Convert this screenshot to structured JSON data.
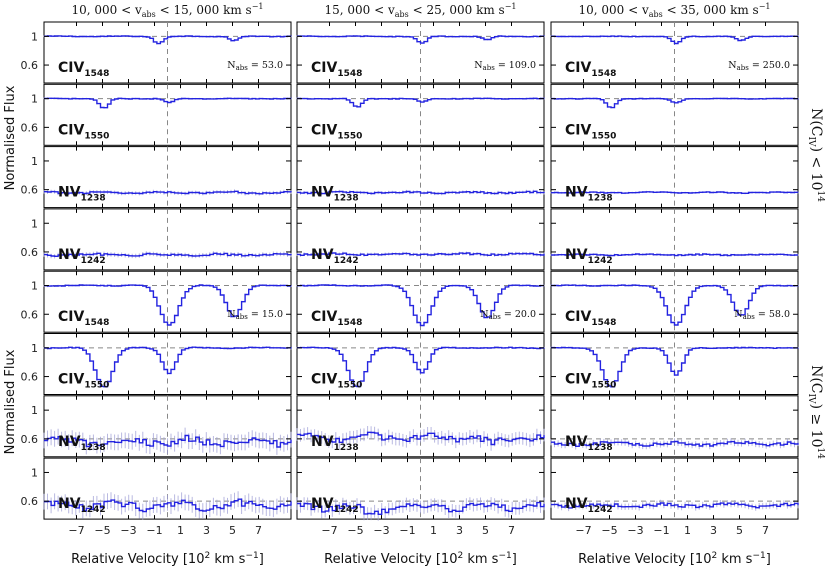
{
  "figure": {
    "column_titles": [
      {
        "lo": "10, 000",
        "hi": "15, 000",
        "mid": " < v",
        "sub": "abs",
        "tail": " < ",
        "unit": " km s",
        "exp": "−1"
      },
      {
        "lo": "15, 000",
        "hi": "25, 000",
        "mid": " < v",
        "sub": "abs",
        "tail": " < ",
        "unit": " km s",
        "exp": "−1"
      },
      {
        "lo": "10, 000",
        "hi": "35, 000",
        "mid": " < v",
        "sub": "abs",
        "tail": " < ",
        "unit": " km s",
        "exp": "−1"
      }
    ],
    "ylabel": "Normalised Flux",
    "xlabel": {
      "main": "Relative Velocity [10",
      "exp": "2",
      "rest": " km s",
      "exp2": "−1",
      "close": "]"
    },
    "row_group_labels": [
      {
        "pre": "N(C",
        "sub": "IV",
        "post": ") < 10",
        "exp": "14"
      },
      {
        "pre": "N(C",
        "sub": "IV",
        "post": ") ≥ 10",
        "exp": "14"
      }
    ],
    "x_ticks": [
      "−7",
      "−5",
      "−3",
      "−1",
      "1",
      "3",
      "5",
      "7"
    ]
  },
  "chart_data": {
    "type": "line",
    "title": "",
    "xlabel": "Relative Velocity [10^2 km s^-1]",
    "ylabel": "Normalised Flux",
    "x_range": [
      -9.5,
      9.5
    ],
    "y_ticks": [
      "1",
      "0.6"
    ],
    "reference_line_x": 0,
    "grid": false,
    "columns": [
      "10,000 < v_abs < 15,000 km s^-1",
      "15,000 < v_abs < 25,000 km s^-1",
      "10,000 < v_abs < 35,000 km s^-1"
    ],
    "groups": [
      {
        "label": "N(CIV) < 10^14",
        "n_abs": [
          "53.0",
          "109.0",
          "250.0"
        ],
        "panels": [
          {
            "ion": "CIV",
            "sub": "1548",
            "ylim": [
              0.35,
              1.2
            ],
            "baseline": 1.0,
            "columns": [
              {
                "continuum": 1.0,
                "noise": 0.004,
                "dips": [
                  [
                    0.1,
                    -0.8,
                    0.35
                  ],
                  [
                    0.06,
                    5.0,
                    0.35
                  ]
                ]
              },
              {
                "continuum": 1.0,
                "noise": 0.004,
                "dips": [
                  [
                    0.1,
                    0.0,
                    0.35
                  ],
                  [
                    0.05,
                    5.0,
                    0.35
                  ]
                ]
              },
              {
                "continuum": 1.0,
                "noise": 0.003,
                "dips": [
                  [
                    0.1,
                    0.0,
                    0.35
                  ],
                  [
                    0.06,
                    5.0,
                    0.35
                  ]
                ]
              }
            ]
          },
          {
            "ion": "CIV",
            "sub": "1550",
            "ylim": [
              0.35,
              1.2
            ],
            "baseline": 1.0,
            "columns": [
              {
                "continuum": 1.0,
                "noise": 0.004,
                "dips": [
                  [
                    0.14,
                    -5.0,
                    0.35
                  ],
                  [
                    0.06,
                    0.0,
                    0.35
                  ]
                ]
              },
              {
                "continuum": 1.0,
                "noise": 0.004,
                "dips": [
                  [
                    0.12,
                    -5.0,
                    0.35
                  ],
                  [
                    0.05,
                    0.0,
                    0.35
                  ]
                ]
              },
              {
                "continuum": 1.0,
                "noise": 0.003,
                "dips": [
                  [
                    0.13,
                    -5.0,
                    0.35
                  ],
                  [
                    0.06,
                    0.0,
                    0.35
                  ]
                ]
              }
            ]
          },
          {
            "ion": "NV",
            "sub": "1238",
            "ylim": [
              0.35,
              1.2
            ],
            "baseline": null,
            "columns": [
              {
                "continuum": 0.56,
                "noise": 0.012,
                "dips": []
              },
              {
                "continuum": 0.56,
                "noise": 0.01,
                "dips": []
              },
              {
                "continuum": 0.56,
                "noise": 0.006,
                "dips": []
              }
            ]
          },
          {
            "ion": "NV",
            "sub": "1242",
            "ylim": [
              0.35,
              1.2
            ],
            "baseline": null,
            "columns": [
              {
                "continuum": 0.56,
                "noise": 0.014,
                "dips": []
              },
              {
                "continuum": 0.57,
                "noise": 0.01,
                "dips": []
              },
              {
                "continuum": 0.56,
                "noise": 0.007,
                "dips": []
              }
            ]
          }
        ]
      },
      {
        "label": "N(CIV) ≥ 10^14",
        "n_abs": [
          "15.0",
          "20.0",
          "58.0"
        ],
        "panels": [
          {
            "ion": "CIV",
            "sub": "1548",
            "ylim": [
              0.35,
              1.2
            ],
            "baseline": 1.0,
            "columns": [
              {
                "continuum": 1.0,
                "noise": 0.006,
                "dips": [
                  [
                    0.55,
                    0.0,
                    0.7
                  ],
                  [
                    0.43,
                    5.0,
                    0.6
                  ]
                ]
              },
              {
                "continuum": 1.0,
                "noise": 0.005,
                "dips": [
                  [
                    0.55,
                    0.0,
                    0.7
                  ],
                  [
                    0.45,
                    5.0,
                    0.6
                  ]
                ]
              },
              {
                "continuum": 1.0,
                "noise": 0.004,
                "dips": [
                  [
                    0.55,
                    0.0,
                    0.7
                  ],
                  [
                    0.42,
                    5.0,
                    0.6
                  ]
                ]
              }
            ]
          },
          {
            "ion": "CIV",
            "sub": "1550",
            "ylim": [
              0.35,
              1.2
            ],
            "baseline": 1.0,
            "columns": [
              {
                "continuum": 1.0,
                "noise": 0.006,
                "dips": [
                  [
                    0.55,
                    -5.0,
                    0.65
                  ],
                  [
                    0.35,
                    0.0,
                    0.5
                  ]
                ]
              },
              {
                "continuum": 1.0,
                "noise": 0.005,
                "dips": [
                  [
                    0.55,
                    -5.0,
                    0.65
                  ],
                  [
                    0.35,
                    0.0,
                    0.5
                  ]
                ]
              },
              {
                "continuum": 1.0,
                "noise": 0.004,
                "dips": [
                  [
                    0.55,
                    -5.0,
                    0.65
                  ],
                  [
                    0.38,
                    0.0,
                    0.5
                  ]
                ]
              }
            ]
          },
          {
            "ion": "NV",
            "sub": "1238",
            "ylim": [
              0.35,
              1.2
            ],
            "baseline": 0.6,
            "columns": [
              {
                "continuum": 0.56,
                "noise": 0.05,
                "dips": []
              },
              {
                "continuum": 0.62,
                "noise": 0.04,
                "dips": [
                  [
                    0.1,
                    5.5,
                    0.6
                  ]
                ]
              },
              {
                "continuum": 0.53,
                "noise": 0.02,
                "dips": []
              }
            ]
          },
          {
            "ion": "NV",
            "sub": "1242",
            "ylim": [
              0.35,
              1.2
            ],
            "baseline": 0.6,
            "columns": [
              {
                "continuum": 0.54,
                "noise": 0.05,
                "dips": []
              },
              {
                "continuum": 0.52,
                "noise": 0.04,
                "dips": [
                  [
                    0.1,
                    -4.0,
                    0.6
                  ]
                ]
              },
              {
                "continuum": 0.54,
                "noise": 0.02,
                "dips": []
              }
            ]
          }
        ]
      }
    ],
    "colors": {
      "data": "#9b9bd4",
      "model": "#2323e0",
      "frame": "#000000",
      "reference": "#888888"
    }
  }
}
